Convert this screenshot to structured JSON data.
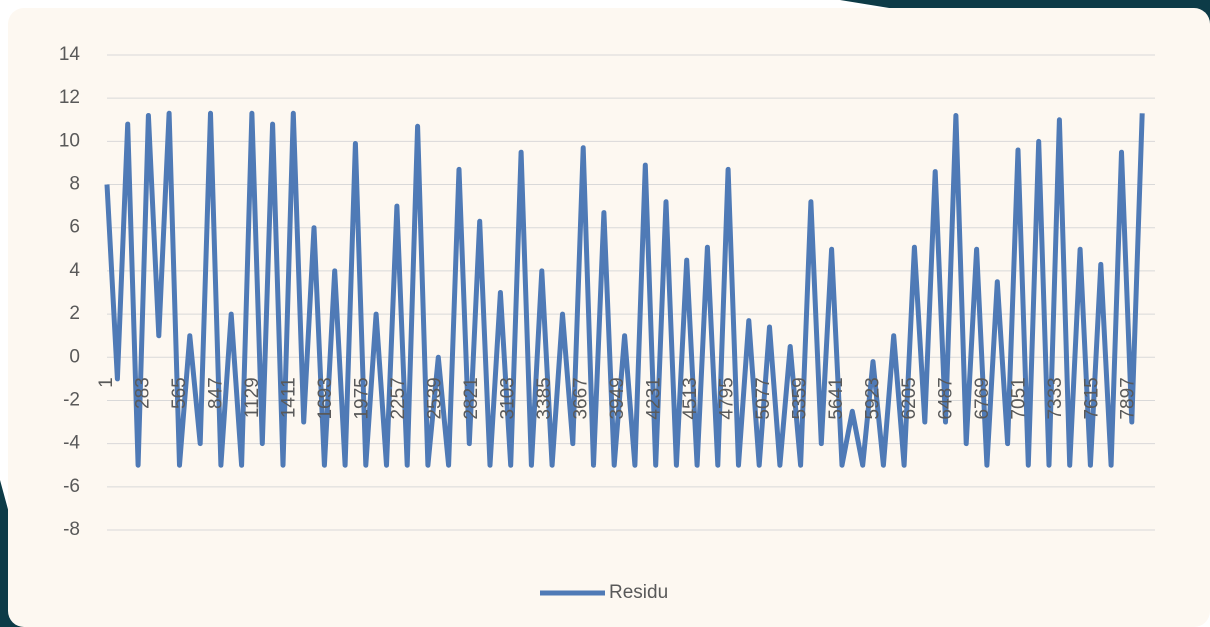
{
  "chart_data": {
    "type": "line",
    "x": [
      1,
      81,
      161,
      241,
      321,
      401,
      481,
      561,
      641,
      721,
      801,
      881,
      961,
      1041,
      1121,
      1201,
      1281,
      1361,
      1441,
      1521,
      1601,
      1681,
      1761,
      1841,
      1921,
      2001,
      2081,
      2161,
      2241,
      2321,
      2401,
      2481,
      2561,
      2641,
      2721,
      2801,
      2881,
      2961,
      3041,
      3121,
      3201,
      3281,
      3361,
      3441,
      3521,
      3601,
      3681,
      3761,
      3841,
      3921,
      4001,
      4081,
      4161,
      4241,
      4321,
      4401,
      4481,
      4561,
      4641,
      4721,
      4801,
      4881,
      4961,
      5041,
      5121,
      5201,
      5281,
      5361,
      5441,
      5521,
      5601,
      5681,
      5761,
      5841,
      5921,
      6001,
      6081,
      6161,
      6241,
      6321,
      6401,
      6481,
      6561,
      6641,
      6721,
      6801,
      6881,
      6961,
      7041,
      7121,
      7201,
      7281,
      7361,
      7441,
      7521,
      7601,
      7681,
      7761,
      7841,
      7921,
      8001
    ],
    "series": [
      {
        "name": "Residu",
        "color": "#4f7ab6",
        "values": [
          8,
          -1,
          10.8,
          -5,
          11.2,
          1,
          11.3,
          -5,
          1,
          -4,
          11.3,
          -5,
          2,
          -5,
          11.3,
          -4,
          10.8,
          -5,
          11.3,
          -3,
          6,
          -5,
          4,
          -5,
          9.9,
          -5,
          2,
          -5,
          7,
          -5,
          10.7,
          -5,
          0,
          -5,
          8.7,
          -4,
          6.3,
          -5,
          3,
          -5,
          9.5,
          -5,
          4,
          -5,
          2,
          -4,
          9.7,
          -5,
          6.7,
          -5,
          1,
          -5,
          8.9,
          -5,
          7.2,
          -5,
          4.5,
          -5,
          5.1,
          -5,
          8.7,
          -5,
          1.7,
          -5,
          1.4,
          -5,
          0.5,
          -5,
          7.2,
          -4,
          5,
          -5,
          -2.5,
          -5,
          -0.2,
          -5,
          1,
          -5,
          5.1,
          -3,
          8.6,
          -3,
          11.2,
          -4,
          5,
          -5,
          3.5,
          -4,
          9.6,
          -5,
          10,
          -5,
          11,
          -5,
          5,
          -5,
          4.3,
          -5,
          9.5,
          -3,
          11.3
        ]
      }
    ],
    "xlim": [
      1,
      8100
    ],
    "xticks": [
      1,
      283,
      565,
      847,
      1129,
      1411,
      1693,
      1975,
      2257,
      2539,
      2821,
      3103,
      3385,
      3667,
      3949,
      4231,
      4513,
      4795,
      5077,
      5359,
      5641,
      5923,
      6205,
      6487,
      6769,
      7051,
      7333,
      7615,
      7897
    ],
    "ylim": [
      -8,
      14
    ],
    "yticks": [
      -8,
      -6,
      -4,
      -2,
      0,
      2,
      4,
      6,
      8,
      10,
      12,
      14
    ],
    "grid": true,
    "legend": "bottom"
  }
}
